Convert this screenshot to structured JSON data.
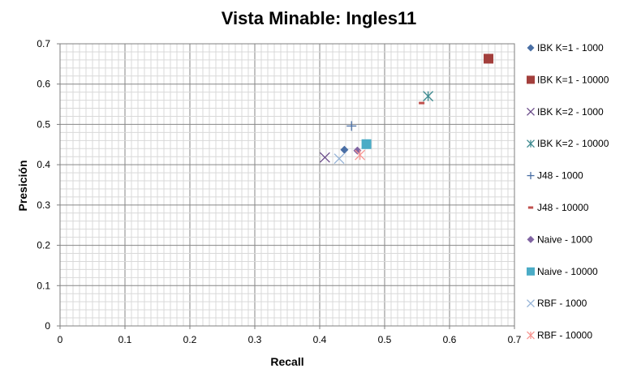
{
  "chart_data": {
    "type": "scatter",
    "title": "Vista Minable: Ingles11",
    "xlabel": "Recall",
    "ylabel": "Presición",
    "xlim": [
      0,
      0.7
    ],
    "ylim": [
      0,
      0.7
    ],
    "x_ticks": [
      "0",
      "0.1",
      "0.2",
      "0.3",
      "0.4",
      "0.5",
      "0.6",
      "0.7"
    ],
    "y_ticks": [
      "0",
      "0.1",
      "0.2",
      "0.3",
      "0.4",
      "0.5",
      "0.6",
      "0.7"
    ],
    "grid": true,
    "legend_position": "right",
    "series": [
      {
        "name": "IBK K=1 - 1000",
        "marker": "diamond",
        "color": "#4a6fa5",
        "points": [
          [
            0.438,
            0.437
          ]
        ]
      },
      {
        "name": "IBK K=1 - 10000",
        "marker": "square",
        "color": "#a33f3c",
        "points": [
          [
            0.66,
            0.663
          ]
        ]
      },
      {
        "name": "IBK K=2 - 1000",
        "marker": "x",
        "color": "#6b4c8a",
        "points": [
          [
            0.408,
            0.418
          ]
        ]
      },
      {
        "name": "IBK K=2 - 10000",
        "marker": "asterisk",
        "color": "#3d8a8f",
        "points": [
          [
            0.567,
            0.57
          ]
        ]
      },
      {
        "name": "J48 - 1000",
        "marker": "plus",
        "color": "#4a6fa5",
        "points": [
          [
            0.449,
            0.496
          ]
        ]
      },
      {
        "name": "J48 - 10000",
        "marker": "dash",
        "color": "#c0504d",
        "points": [
          [
            0.557,
            0.553
          ]
        ]
      },
      {
        "name": "Naive - 1000",
        "marker": "diamond",
        "color": "#8064a2",
        "points": [
          [
            0.458,
            0.435
          ]
        ]
      },
      {
        "name": "Naive - 10000",
        "marker": "square",
        "color": "#4bacc6",
        "points": [
          [
            0.472,
            0.451
          ]
        ]
      },
      {
        "name": "RBF - 1000",
        "marker": "x",
        "color": "#95b3d7",
        "points": [
          [
            0.43,
            0.415
          ]
        ]
      },
      {
        "name": "RBF - 10000",
        "marker": "asterisk",
        "color": "#f79692",
        "points": [
          [
            0.462,
            0.424
          ]
        ]
      }
    ]
  }
}
